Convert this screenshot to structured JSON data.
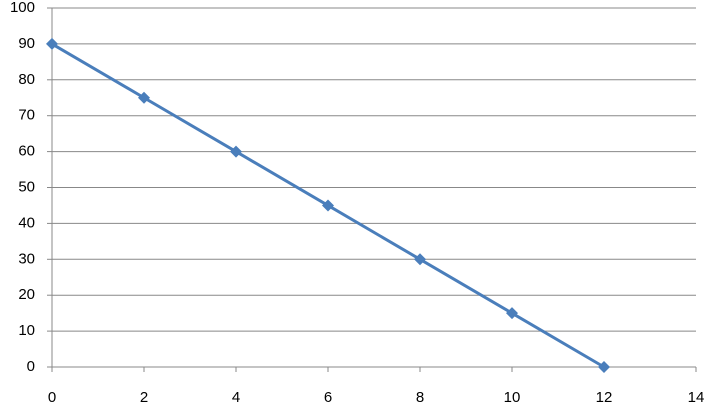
{
  "chart_data": {
    "type": "line",
    "x": [
      0,
      2,
      4,
      6,
      8,
      10,
      12
    ],
    "values": [
      90,
      75,
      60,
      45,
      30,
      15,
      0
    ],
    "color": "#4a7ebb",
    "marker": "diamond",
    "xlim": [
      0,
      14
    ],
    "xticks": [
      0,
      2,
      4,
      6,
      8,
      10,
      12,
      14
    ],
    "ylim": [
      0,
      100
    ],
    "yticks": [
      0,
      10,
      20,
      30,
      40,
      50,
      60,
      70,
      80,
      90,
      100
    ],
    "grid": true
  }
}
